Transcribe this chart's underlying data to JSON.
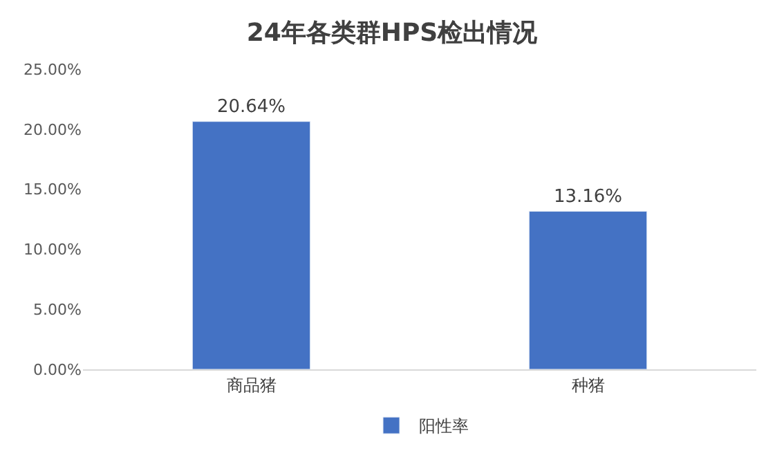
{
  "chart_data": {
    "type": "bar",
    "title": "24年各类群HPS检出情况",
    "categories": [
      "商品猪",
      "种猪"
    ],
    "series": [
      {
        "name": "阳性率",
        "color": "#4472c4",
        "values": [
          20.64,
          13.16
        ],
        "value_labels": [
          "20.64%",
          "13.16%"
        ]
      }
    ],
    "ylim": [
      0,
      25
    ],
    "yticks": [
      {
        "value": 0,
        "label": "0.00%"
      },
      {
        "value": 5,
        "label": "5.00%"
      },
      {
        "value": 10,
        "label": "10.00%"
      },
      {
        "value": 15,
        "label": "15.00%"
      },
      {
        "value": 20,
        "label": "20.00%"
      },
      {
        "value": 25,
        "label": "25.00%"
      }
    ],
    "grid": false,
    "legend": "bottom"
  }
}
